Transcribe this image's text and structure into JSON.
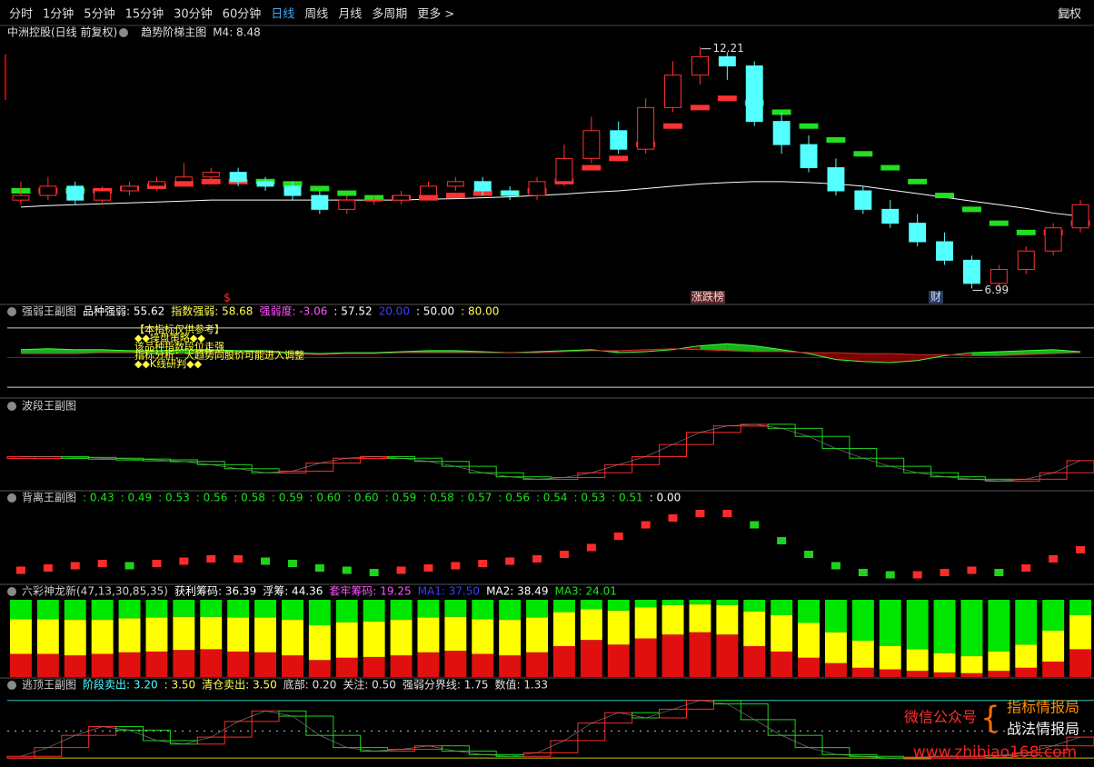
{
  "toolbar": {
    "items": [
      "分时",
      "1分钟",
      "5分钟",
      "15分钟",
      "30分钟",
      "60分钟",
      "日线",
      "周线",
      "月线",
      "多周期",
      "更多 >"
    ],
    "active": 6,
    "right": "复权"
  },
  "chart_data": [
    {
      "type": "candlestick",
      "header": [
        {
          "text": "中洲控股(日线 前复权)",
          "color": "#e0e0e0"
        },
        {
          "text": "趋势阶梯主图",
          "color": "#e0e0e0"
        },
        {
          "text": "M4: 8.48",
          "color": "#e0e0e0"
        }
      ],
      "ylim": [
        6.9,
        12.4
      ],
      "up_color": "#ff3232",
      "down_color": "#54ffff",
      "ma_color": "#ffffff",
      "annotations": {
        "high": "12.21",
        "low": "6.99",
        "marks": [
          "$",
          "涨跌榜",
          "财"
        ]
      },
      "candles": [
        [
          8.9,
          9.3,
          8.8,
          9.0
        ],
        [
          9.0,
          9.4,
          8.9,
          9.2
        ],
        [
          9.2,
          9.3,
          8.8,
          8.9
        ],
        [
          8.9,
          9.2,
          8.8,
          9.1
        ],
        [
          9.1,
          9.3,
          9.0,
          9.2
        ],
        [
          9.2,
          9.4,
          9.1,
          9.3
        ],
        [
          9.3,
          9.7,
          9.2,
          9.4
        ],
        [
          9.4,
          9.6,
          9.3,
          9.5
        ],
        [
          9.5,
          9.6,
          9.2,
          9.3
        ],
        [
          9.3,
          9.4,
          9.1,
          9.2
        ],
        [
          9.2,
          9.3,
          8.9,
          9.0
        ],
        [
          9.0,
          9.1,
          8.6,
          8.7
        ],
        [
          8.7,
          9.0,
          8.6,
          8.9
        ],
        [
          8.9,
          9.0,
          8.8,
          8.9
        ],
        [
          8.9,
          9.1,
          8.8,
          9.0
        ],
        [
          9.0,
          9.3,
          8.9,
          9.2
        ],
        [
          9.2,
          9.4,
          9.1,
          9.3
        ],
        [
          9.3,
          9.4,
          9.0,
          9.1
        ],
        [
          9.1,
          9.2,
          8.9,
          9.0
        ],
        [
          9.0,
          9.4,
          8.9,
          9.3
        ],
        [
          9.3,
          10.1,
          9.2,
          9.8
        ],
        [
          9.8,
          10.7,
          9.7,
          10.4
        ],
        [
          10.4,
          10.6,
          9.9,
          10.0
        ],
        [
          10.0,
          11.1,
          9.9,
          10.9
        ],
        [
          10.9,
          11.9,
          10.8,
          11.6
        ],
        [
          11.6,
          12.21,
          11.4,
          12.0
        ],
        [
          12.0,
          12.1,
          11.5,
          11.8
        ],
        [
          11.8,
          11.9,
          10.5,
          10.6
        ],
        [
          10.6,
          10.8,
          9.9,
          10.1
        ],
        [
          10.1,
          10.3,
          9.5,
          9.6
        ],
        [
          9.6,
          9.8,
          9.0,
          9.1
        ],
        [
          9.1,
          9.2,
          8.6,
          8.7
        ],
        [
          8.7,
          8.9,
          8.3,
          8.4
        ],
        [
          8.4,
          8.6,
          7.9,
          8.0
        ],
        [
          8.0,
          8.2,
          7.5,
          7.6
        ],
        [
          7.6,
          7.7,
          6.99,
          7.1
        ],
        [
          7.1,
          7.5,
          7.0,
          7.4
        ],
        [
          7.4,
          7.9,
          7.3,
          7.8
        ],
        [
          7.8,
          8.4,
          7.7,
          8.3
        ],
        [
          8.3,
          8.9,
          8.2,
          8.8
        ]
      ],
      "ma": [
        8.75,
        8.78,
        8.8,
        8.82,
        8.84,
        8.86,
        8.88,
        8.9,
        8.9,
        8.9,
        8.9,
        8.9,
        8.9,
        8.9,
        8.9,
        8.92,
        8.93,
        8.95,
        8.97,
        9.0,
        9.03,
        9.07,
        9.1,
        9.15,
        9.2,
        9.25,
        9.28,
        9.3,
        9.3,
        9.28,
        9.25,
        9.2,
        9.12,
        9.04,
        8.96,
        8.88,
        8.8,
        8.72,
        8.62,
        8.55
      ],
      "ladder": [
        9.1,
        9.1,
        9.1,
        9.1,
        9.15,
        9.2,
        9.25,
        9.3,
        9.3,
        9.3,
        9.25,
        9.15,
        9.05,
        8.95,
        8.95,
        8.95,
        9.0,
        9.05,
        9.05,
        9.1,
        9.3,
        9.6,
        9.8,
        10.1,
        10.5,
        10.9,
        11.1,
        11.0,
        10.8,
        10.5,
        10.2,
        9.9,
        9.6,
        9.3,
        9.0,
        8.7,
        8.4,
        8.2,
        8.2,
        8.4
      ]
    },
    {
      "type": "band",
      "header": [
        {
          "text": "强弱王副图",
          "color": "#cfcfcf"
        },
        {
          "text": "品种强弱: 55.62",
          "color": "#ffffff"
        },
        {
          "text": "指数强弱: 58.68",
          "color": "#ffff54"
        },
        {
          "text": "强弱度: -3.06",
          "color": "#ff54ff"
        },
        {
          "text": ": 57.52",
          "color": "#ffffff"
        },
        {
          "text": "20.00",
          "color": "#3b3bff"
        },
        {
          "text": ": 50.00",
          "color": "#ffffff"
        },
        {
          "text": ": 80.00",
          "color": "#ffff54"
        }
      ],
      "ylim": [
        10,
        90
      ],
      "levels": [
        {
          "value": 20,
          "color": "#cfcfcf"
        },
        {
          "value": 50,
          "color": "#2020ff"
        },
        {
          "value": 80,
          "color": "#cfcfcf"
        }
      ],
      "notes": [
        "【本指标仅供参考】",
        "◆◆操盘策略◆◆",
        "该品种指数段位走强",
        "指标分析：大趋势向股价可能进入调整",
        "◆◆K线研判◆◆"
      ],
      "series": [
        {
          "color": "#19c819",
          "values": [
            58,
            59,
            58,
            58,
            57,
            57,
            58,
            58,
            57,
            57,
            55,
            54,
            55,
            55,
            56,
            57,
            57,
            56,
            55,
            56,
            57,
            58,
            55,
            56,
            58,
            62,
            64,
            62,
            58,
            54,
            48,
            46,
            45,
            47,
            52,
            55,
            56,
            57,
            58,
            56
          ]
        },
        {
          "color": "#8b0000",
          "values": [
            54,
            54,
            54,
            55,
            55,
            54,
            54,
            55,
            55,
            55,
            54,
            53,
            54,
            54,
            55,
            55,
            55,
            55,
            55,
            55,
            56,
            57,
            57,
            58,
            59,
            58,
            57,
            56,
            56,
            55,
            55,
            54,
            54,
            53,
            53,
            52,
            52,
            53,
            54,
            55
          ]
        }
      ]
    },
    {
      "type": "step",
      "header": [
        {
          "text": "波段王副图",
          "color": "#cfcfcf"
        }
      ],
      "ylim": [
        0,
        90
      ],
      "up_color": "#ff2b2b",
      "down_color": "#1ed21e",
      "values": [
        40,
        40,
        39,
        38,
        37,
        36,
        34,
        30,
        25,
        20,
        22,
        32,
        38,
        40,
        38,
        34,
        28,
        20,
        15,
        12,
        14,
        20,
        30,
        40,
        55,
        70,
        78,
        80,
        75,
        65,
        50,
        38,
        28,
        20,
        15,
        12,
        10,
        12,
        20,
        35
      ]
    },
    {
      "type": "dots",
      "header": [
        {
          "text": "背离王副图",
          "color": "#cfcfcf"
        },
        {
          "text": ": 0.43",
          "color": "#19e619"
        },
        {
          "text": ": 0.49",
          "color": "#19e619"
        },
        {
          "text": ": 0.53",
          "color": "#19e619"
        },
        {
          "text": ": 0.56",
          "color": "#19e619"
        },
        {
          "text": ": 0.58",
          "color": "#19e619"
        },
        {
          "text": ": 0.59",
          "color": "#19e619"
        },
        {
          "text": ": 0.60",
          "color": "#19e619"
        },
        {
          "text": ": 0.60",
          "color": "#19e619"
        },
        {
          "text": ": 0.59",
          "color": "#19e619"
        },
        {
          "text": ": 0.58",
          "color": "#19e619"
        },
        {
          "text": ": 0.57",
          "color": "#19e619"
        },
        {
          "text": ": 0.56",
          "color": "#19e619"
        },
        {
          "text": ": 0.54",
          "color": "#19e619"
        },
        {
          "text": ": 0.53",
          "color": "#19e619"
        },
        {
          "text": ": 0.51",
          "color": "#19e619"
        },
        {
          "text": ": 0.00",
          "color": "#ffffff"
        }
      ],
      "ylim": [
        0.3,
        0.62
      ],
      "up_color": "#ff2b2b",
      "down_color": "#1ed21e",
      "values": [
        0.35,
        0.36,
        0.37,
        0.38,
        0.37,
        0.38,
        0.39,
        0.4,
        0.4,
        0.39,
        0.38,
        0.36,
        0.35,
        0.34,
        0.35,
        0.36,
        0.37,
        0.38,
        0.39,
        0.4,
        0.42,
        0.45,
        0.5,
        0.55,
        0.58,
        0.6,
        0.6,
        0.55,
        0.48,
        0.42,
        0.37,
        0.34,
        0.33,
        0.33,
        0.34,
        0.35,
        0.34,
        0.36,
        0.4,
        0.44
      ]
    },
    {
      "type": "stacked-bar",
      "header": [
        {
          "text": "六彩神龙新(47,13,30,85,35)",
          "color": "#cfcfcf"
        },
        {
          "text": "获利筹码: 36.39",
          "color": "#ffffff"
        },
        {
          "text": "浮筹: 44.36",
          "color": "#ffffff"
        },
        {
          "text": "套牢筹码: 19.25",
          "color": "#ff54ff"
        },
        {
          "text": "MA1: 37.50",
          "color": "#3b3bff"
        },
        {
          "text": "MA2: 38.49",
          "color": "#ffffff"
        },
        {
          "text": "MA3: 24.01",
          "color": "#19e619"
        }
      ],
      "ylim": [
        0,
        100
      ],
      "series": [
        {
          "color": "#e01010",
          "values": [
            30,
            30,
            28,
            30,
            32,
            33,
            35,
            36,
            33,
            32,
            28,
            22,
            25,
            26,
            28,
            32,
            34,
            30,
            28,
            32,
            40,
            48,
            42,
            50,
            55,
            58,
            55,
            40,
            33,
            25,
            18,
            12,
            10,
            8,
            6,
            5,
            8,
            12,
            20,
            36
          ]
        },
        {
          "color": "#ffff00",
          "values": [
            45,
            45,
            46,
            44,
            44,
            44,
            43,
            42,
            44,
            45,
            46,
            45,
            46,
            46,
            46,
            45,
            44,
            45,
            46,
            45,
            44,
            40,
            44,
            40,
            38,
            36,
            38,
            45,
            47,
            45,
            40,
            35,
            30,
            28,
            25,
            22,
            25,
            30,
            40,
            44
          ]
        },
        {
          "color": "#00e600",
          "values": [
            25,
            25,
            26,
            26,
            24,
            23,
            22,
            22,
            23,
            23,
            26,
            33,
            29,
            28,
            26,
            23,
            22,
            25,
            26,
            23,
            16,
            12,
            14,
            10,
            7,
            6,
            7,
            15,
            20,
            30,
            42,
            53,
            60,
            64,
            69,
            73,
            67,
            58,
            40,
            20
          ]
        }
      ]
    },
    {
      "type": "step",
      "header": [
        {
          "text": "逃顶王副图",
          "color": "#cfcfcf"
        },
        {
          "text": "阶段卖出: 3.20",
          "color": "#54ffff"
        },
        {
          "text": ": 3.50",
          "color": "#ffff54"
        },
        {
          "text": "清仓卖出: 3.50",
          "color": "#ffff54"
        },
        {
          "text": "底部: 0.20",
          "color": "#e0e0e0"
        },
        {
          "text": "关注: 0.50",
          "color": "#e0e0e0"
        },
        {
          "text": "强弱分界线: 1.75",
          "color": "#e0e0e0"
        },
        {
          "text": "数值: 1.33",
          "color": "#e0e0e0"
        }
      ],
      "ylim": [
        0,
        3.8
      ],
      "up_color": "#ff2b2b",
      "down_color": "#1ed21e",
      "levels": [
        {
          "value": 3.5,
          "color": "#30c8c8"
        },
        {
          "value": 1.75,
          "color": "#bbbbbb"
        },
        {
          "value": 0.2,
          "color": "#c8c800"
        }
      ],
      "values": [
        0.3,
        0.8,
        1.5,
        2.0,
        1.8,
        1.2,
        1.0,
        1.4,
        2.3,
        2.9,
        2.6,
        1.5,
        0.8,
        0.6,
        0.7,
        0.9,
        0.6,
        0.4,
        0.3,
        0.5,
        1.2,
        2.2,
        2.8,
        2.5,
        3.0,
        3.5,
        3.3,
        2.4,
        1.5,
        0.8,
        0.4,
        0.3,
        0.2,
        0.25,
        0.3,
        0.3,
        0.35,
        0.5,
        0.9,
        1.4
      ]
    }
  ],
  "watermark": {
    "label": "微信公众号",
    "name1": "指标情报局",
    "name2": "战法情报局",
    "url": "www.zhibiao168.com"
  }
}
